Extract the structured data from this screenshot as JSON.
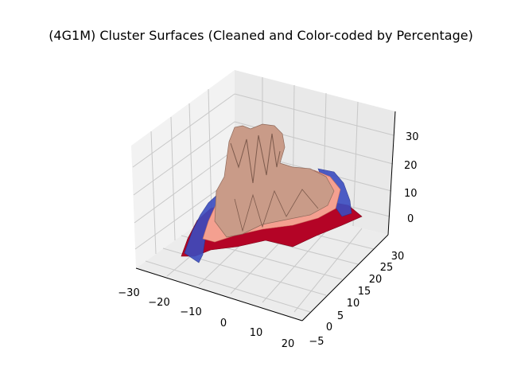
{
  "chart_data": {
    "type": "surface",
    "title": "(4G1M) Cluster Surfaces (Cleaned and Color-coded by Percentage)",
    "xlabel": "",
    "ylabel": "",
    "zlabel": "",
    "x_ticks": [
      "−30",
      "−20",
      "−10",
      "0",
      "10",
      "20"
    ],
    "y_ticks": [
      "−5",
      "0",
      "5",
      "10",
      "15",
      "20",
      "25",
      "30"
    ],
    "z_ticks": [
      "0",
      "10",
      "20",
      "30"
    ],
    "xlim": [
      -30,
      22
    ],
    "ylim": [
      -6,
      31
    ],
    "zlim": [
      -5,
      36
    ],
    "grid": true,
    "surfaces": [
      {
        "color": "#b40426",
        "role": "base layer"
      },
      {
        "color": "#3b4cc0",
        "role": "outer edge layer"
      },
      {
        "color": "#c99b88",
        "role": "central cluster surface"
      },
      {
        "color": "#f4a090",
        "role": "mid-level surface"
      }
    ],
    "peak_z": 33
  }
}
